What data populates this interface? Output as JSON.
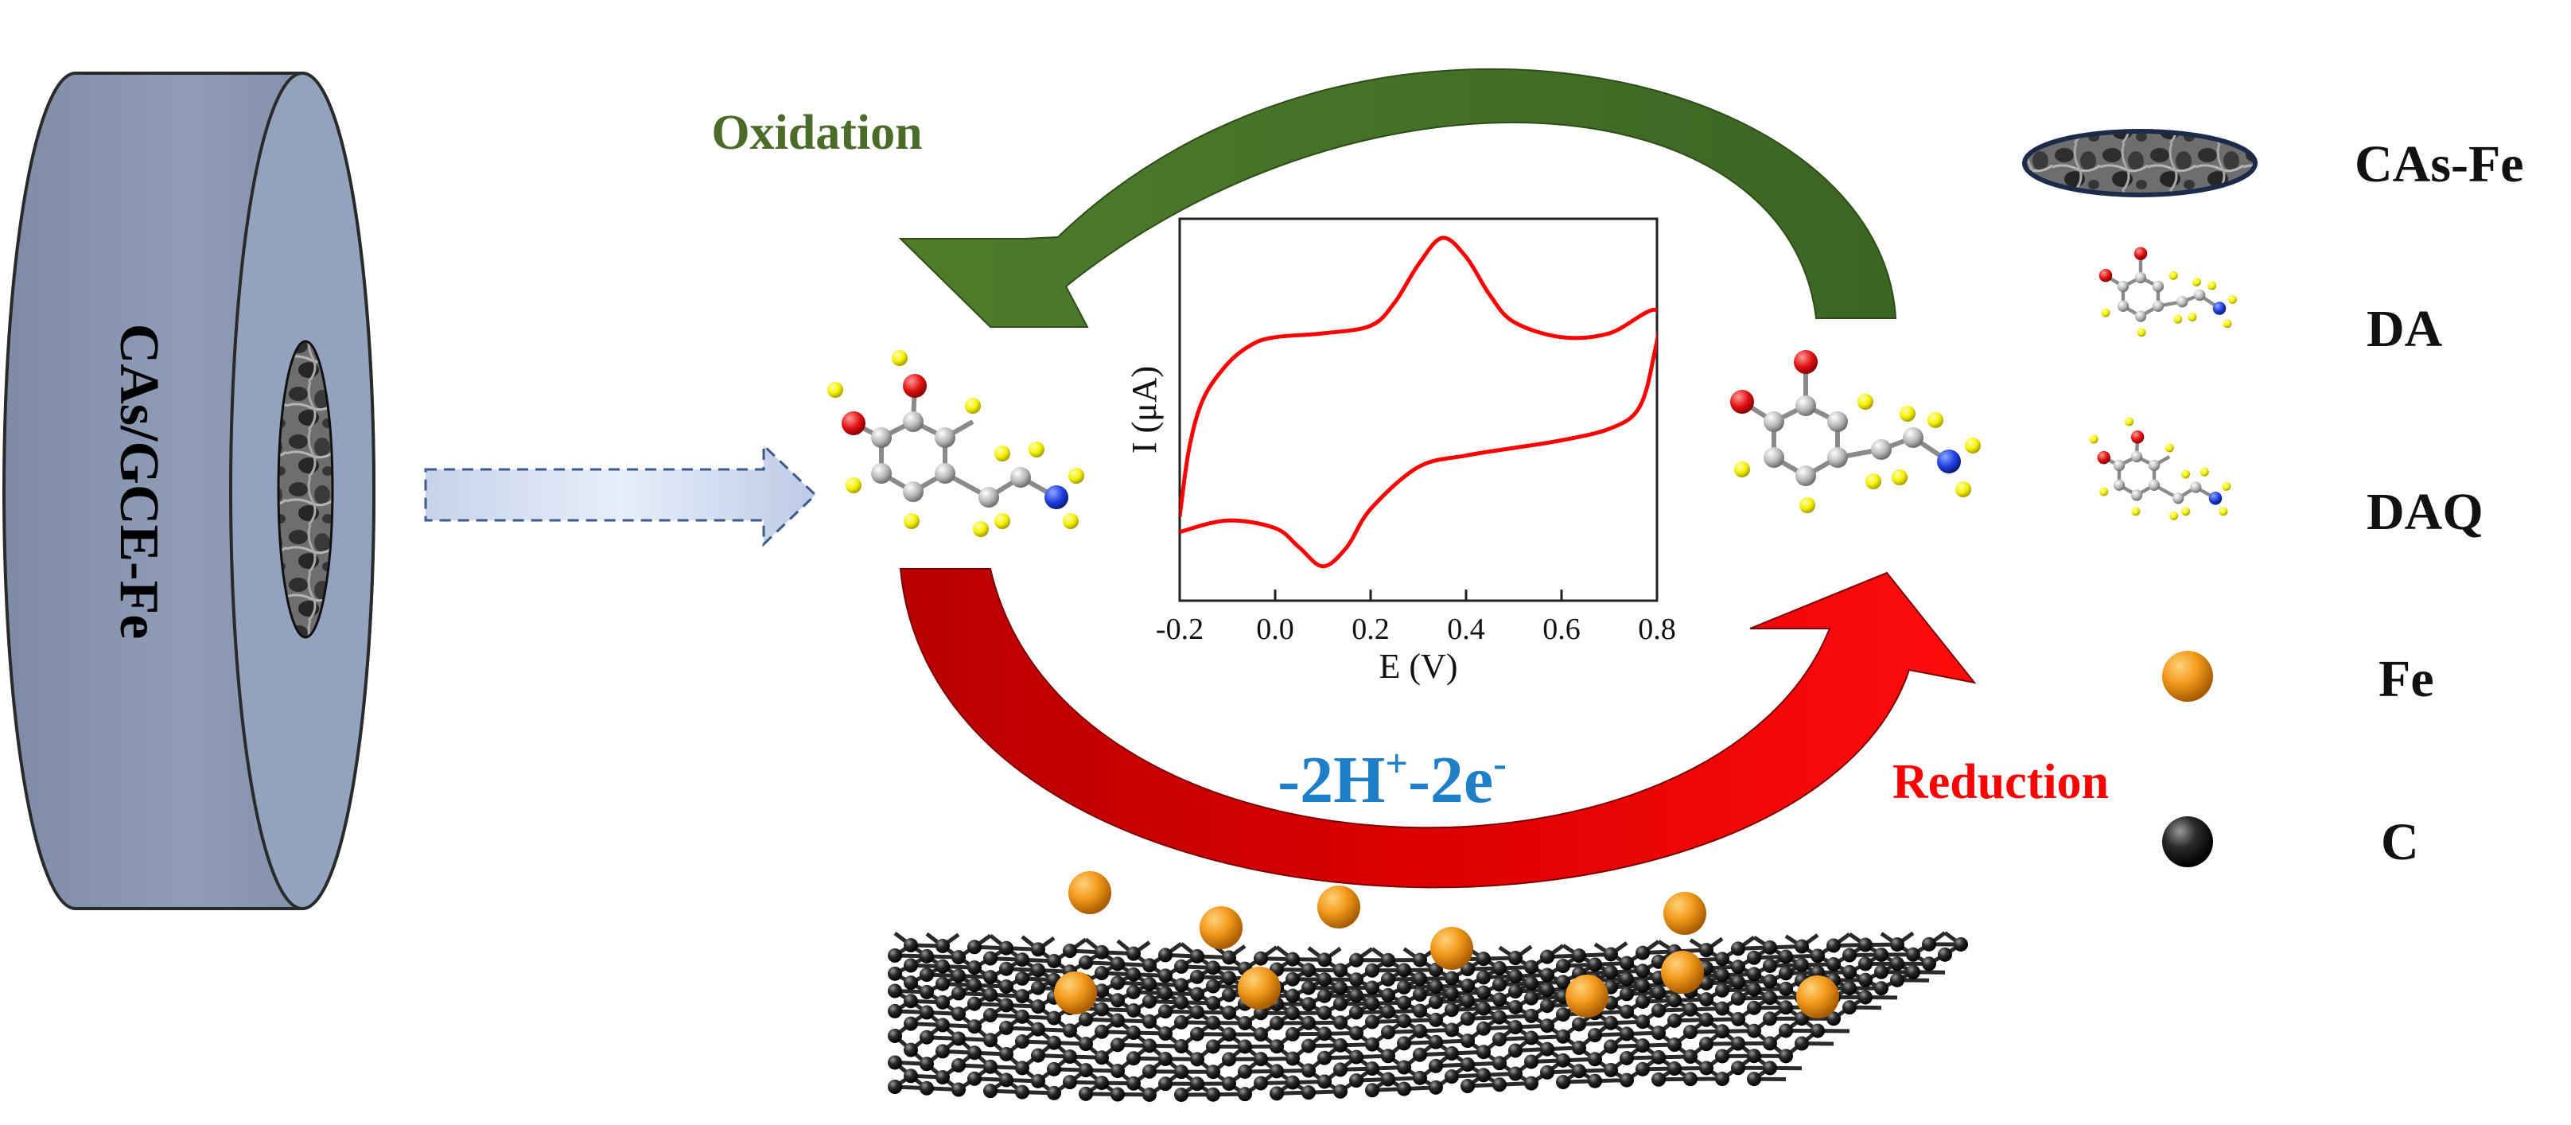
{
  "electrode": {
    "label": "CAs/GCE-Fe"
  },
  "process": {
    "oxidation_label": "Oxidation",
    "reduction_label": "Reduction",
    "electron_transfer": {
      "prefix": "-2H",
      "sup1": "+",
      "middle": "-2e",
      "sup2": "-"
    }
  },
  "chart_data": {
    "type": "line",
    "title": "",
    "xlabel": "E (V)",
    "ylabel": "I (μA)",
    "xlim": [
      -0.2,
      0.8
    ],
    "x_ticks": [
      "-0.2",
      "0.0",
      "0.2",
      "0.4",
      "0.6",
      "0.8"
    ],
    "y_ticks_shown": false,
    "series": [
      {
        "name": "",
        "color": "#ff0000",
        "forward_scan": [
          [
            -0.2,
            0.22
          ],
          [
            -0.18,
            0.4
          ],
          [
            -0.15,
            0.53
          ],
          [
            -0.1,
            0.62
          ],
          [
            -0.05,
            0.67
          ],
          [
            0.0,
            0.69
          ],
          [
            0.1,
            0.7
          ],
          [
            0.2,
            0.72
          ],
          [
            0.25,
            0.78
          ],
          [
            0.3,
            0.88
          ],
          [
            0.35,
            0.95
          ],
          [
            0.4,
            0.9
          ],
          [
            0.45,
            0.8
          ],
          [
            0.5,
            0.73
          ],
          [
            0.6,
            0.69
          ],
          [
            0.7,
            0.7
          ],
          [
            0.8,
            0.76
          ]
        ],
        "reverse_scan": [
          [
            0.8,
            0.76
          ],
          [
            0.79,
            0.62
          ],
          [
            0.76,
            0.5
          ],
          [
            0.7,
            0.45
          ],
          [
            0.6,
            0.42
          ],
          [
            0.5,
            0.4
          ],
          [
            0.4,
            0.38
          ],
          [
            0.3,
            0.35
          ],
          [
            0.2,
            0.24
          ],
          [
            0.15,
            0.14
          ],
          [
            0.1,
            0.09
          ],
          [
            0.05,
            0.14
          ],
          [
            0.0,
            0.19
          ],
          [
            -0.1,
            0.21
          ],
          [
            -0.2,
            0.18
          ]
        ]
      }
    ]
  },
  "legend": {
    "items": [
      {
        "label": "CAs-Fe",
        "icon": "carbon-aerogel-disc-icon"
      },
      {
        "label": "DA",
        "icon": "dopamine-molecule-icon"
      },
      {
        "label": "DAQ",
        "icon": "dopamine-quinone-molecule-icon"
      },
      {
        "label": "Fe",
        "icon": "iron-atom-icon",
        "color": "#e08a16"
      },
      {
        "label": "C",
        "icon": "carbon-atom-icon",
        "color": "#1a1a1a"
      }
    ]
  },
  "colors": {
    "electrode_fill": "#8593ad",
    "oxidation_arrow": "#4f7a2a",
    "reduction_arrow": "#dd0000",
    "electron_text": "#1f7ec8",
    "reduction_text": "#ff0000",
    "oxidation_text": "#4b6b28"
  }
}
